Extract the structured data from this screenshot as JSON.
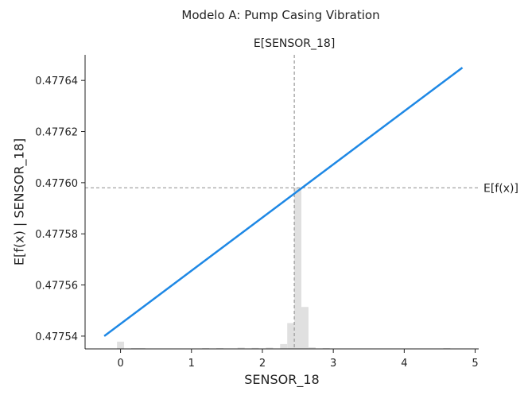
{
  "chart_data": {
    "type": "line",
    "title": "Modelo A: Pump Casing Vibration",
    "xlabel": "SENSOR_18",
    "ylabel": "E[f(x) | SENSOR_18]",
    "xlim": [
      -0.5,
      5.05
    ],
    "ylim": [
      0.477535,
      0.47765
    ],
    "x_ticks": [
      0,
      1,
      2,
      3,
      4,
      5
    ],
    "y_ticks": [
      0.47754,
      0.47756,
      0.47758,
      0.4776,
      0.47762,
      0.47764
    ],
    "y_tick_labels": [
      "0.47754",
      "0.47756",
      "0.47758",
      "0.47760",
      "0.47762",
      "0.47764"
    ],
    "series": [
      {
        "color": "#1e88e5",
        "x": [
          -0.23,
          4.82
        ],
        "y": [
          0.47754,
          0.477645
        ]
      }
    ],
    "reference_lines": {
      "expected_x": {
        "label": "E[SENSOR_18]",
        "value": 2.45
      },
      "expected_y": {
        "label": "E[f(x)]",
        "value": 0.477598
      }
    },
    "histogram": {
      "color": "#e0e0e0",
      "bin_width": 0.1,
      "bins": [
        {
          "x": 0.0,
          "frac": 0.045
        },
        {
          "x": 0.2,
          "frac": 0.004
        },
        {
          "x": 0.3,
          "frac": 0.004
        },
        {
          "x": 1.2,
          "frac": 0.004
        },
        {
          "x": 1.4,
          "frac": 0.004
        },
        {
          "x": 1.7,
          "frac": 0.008
        },
        {
          "x": 1.9,
          "frac": 0.006
        },
        {
          "x": 2.1,
          "frac": 0.008
        },
        {
          "x": 2.3,
          "frac": 0.03
        },
        {
          "x": 2.4,
          "frac": 0.16
        },
        {
          "x": 2.5,
          "frac": 1.0
        },
        {
          "x": 2.6,
          "frac": 0.26
        },
        {
          "x": 2.7,
          "frac": 0.01
        },
        {
          "x": 2.9,
          "frac": 0.004
        },
        {
          "x": 4.6,
          "frac": 0.004
        }
      ]
    },
    "grid": false
  }
}
